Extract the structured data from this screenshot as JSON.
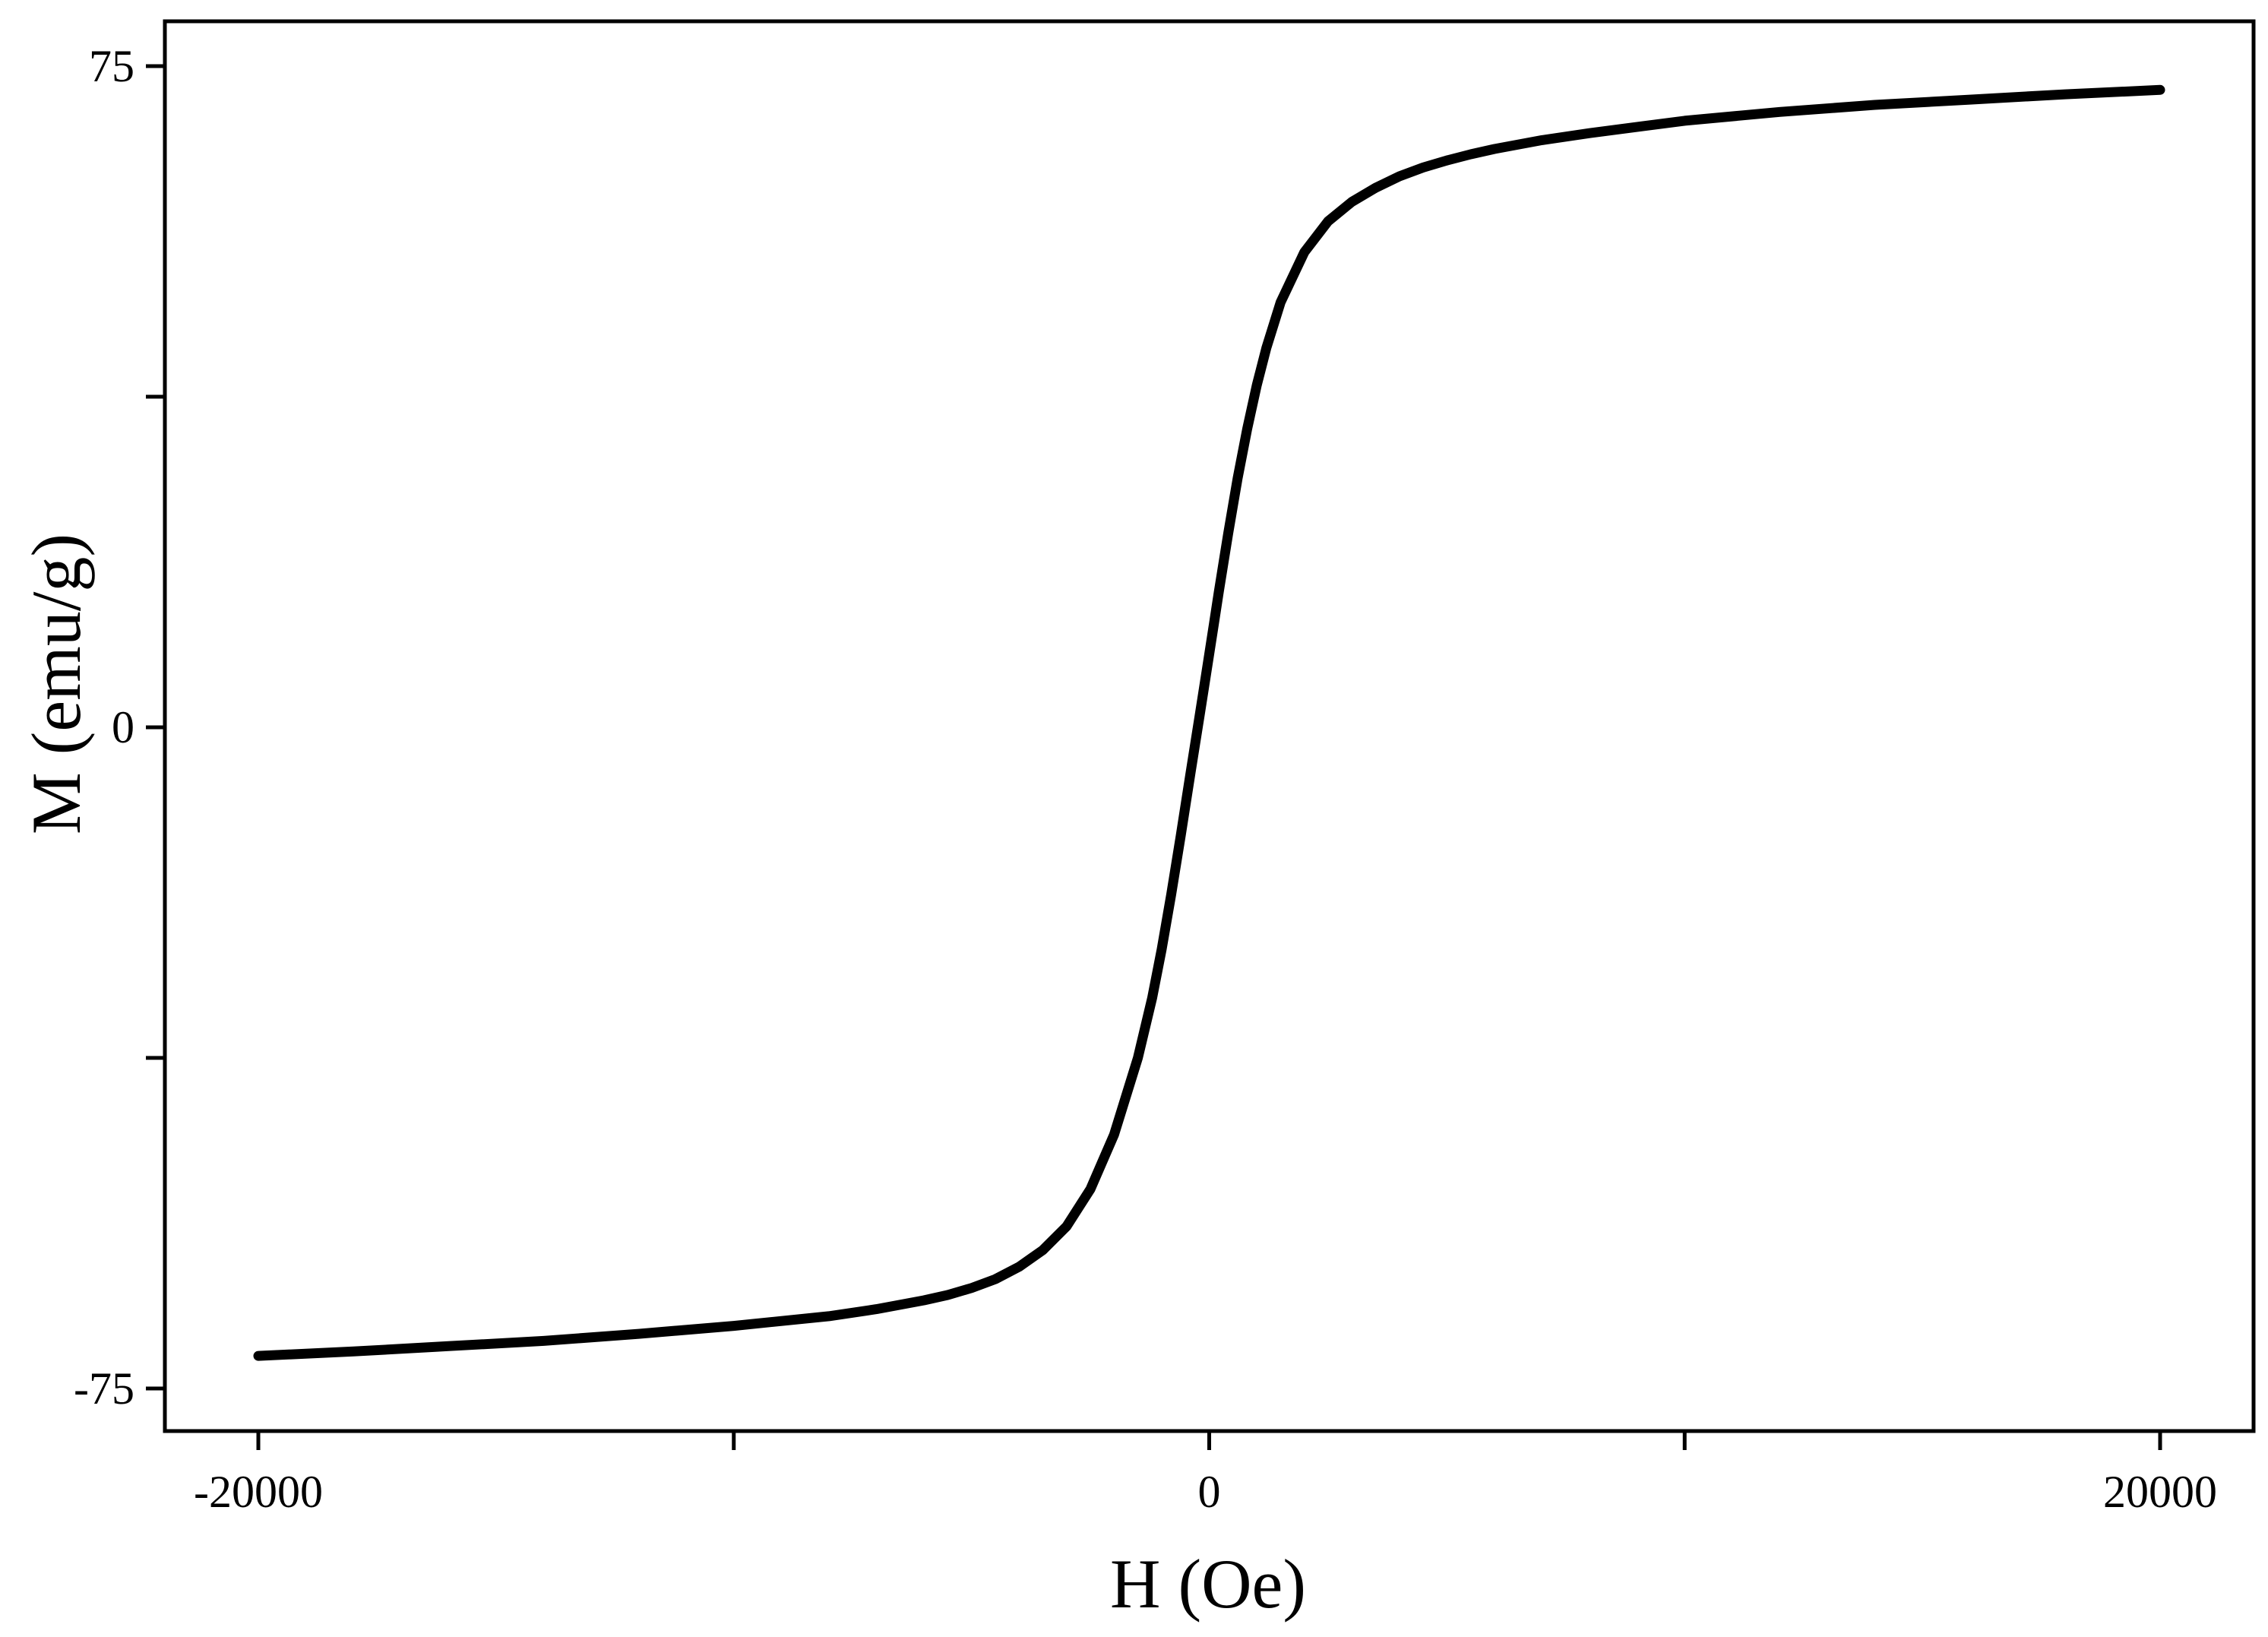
{
  "chart_data": {
    "type": "line",
    "title": "",
    "xlabel": "H (Oe)",
    "ylabel": "M (emu/g)",
    "xlim": [
      -22000,
      22000
    ],
    "ylim": [
      -80,
      80
    ],
    "x_ticks": [
      -20000,
      -10000,
      0,
      10000,
      20000
    ],
    "x_tick_labels": [
      "-20000",
      "",
      "0",
      "",
      "20000"
    ],
    "y_ticks": [
      -75,
      -37.5,
      0,
      37.5,
      75
    ],
    "y_tick_labels": [
      "-75",
      "",
      "0",
      "",
      "75"
    ],
    "grid": false,
    "legend": "none",
    "line_color": "#000000",
    "series": [
      {
        "x": [
          -20000,
          -18000,
          -16000,
          -14000,
          -12000,
          -10000,
          -8000,
          -7000,
          -6000,
          -5500,
          -5000,
          -4500,
          -4000,
          -3500,
          -3000,
          -2500,
          -2000,
          -1500,
          -1200,
          -1000,
          -800,
          -600,
          -400,
          -200,
          -100,
          0,
          100,
          200,
          400,
          600,
          800,
          1000,
          1200,
          1500,
          2000,
          2500,
          3000,
          3500,
          4000,
          4500,
          5000,
          5500,
          6000,
          7000,
          8000,
          10000,
          12000,
          14000,
          16000,
          18000,
          20000
        ],
        "y": [
          -71.3,
          -70.8,
          -70.2,
          -69.6,
          -68.8,
          -67.9,
          -66.8,
          -66.0,
          -65.0,
          -64.4,
          -63.6,
          -62.6,
          -61.2,
          -59.3,
          -56.6,
          -52.4,
          -46.2,
          -37.5,
          -30.7,
          -25.2,
          -19.0,
          -12.3,
          -5.4,
          1.4,
          4.8,
          8.3,
          11.8,
          15.3,
          22.0,
          28.3,
          33.9,
          38.8,
          43.0,
          48.2,
          53.9,
          57.4,
          59.6,
          61.2,
          62.5,
          63.5,
          64.3,
          65.0,
          65.6,
          66.6,
          67.4,
          68.8,
          69.8,
          70.6,
          71.2,
          71.8,
          72.3
        ]
      }
    ]
  }
}
